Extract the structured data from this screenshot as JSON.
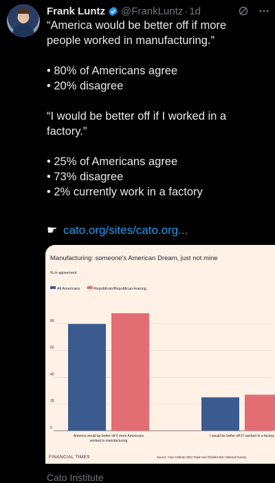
{
  "tweet": {
    "author_name": "Frank Luntz",
    "handle": "@FrankLuntz",
    "separator": "·",
    "time": "1d",
    "lines": [
      "“America would be better off if more",
      "people worked in manufacturing.”",
      "",
      "• 80% of Americans agree",
      "• 20% disagree",
      "",
      "“I would be better off if I worked in a",
      "factory.”",
      "",
      "• 25% of Americans agree",
      "• 73% disagree",
      "•   2% currently work in a factory"
    ],
    "link_text": "cato.org/sites/cato.org...",
    "source_label": "Cato Institute"
  },
  "colors": {
    "accent_link": "#1d9bf0",
    "verified": "#1d9bf0",
    "blue_series": "#3b5b8f",
    "red_series": "#e26d73",
    "card_bg": "#fff1e5"
  },
  "icons": {
    "verified": "verified-badge-icon",
    "grok": "grok-icon",
    "more": "more-icon",
    "link_pointer": "pointing-hand-icon"
  },
  "chart_data": {
    "type": "bar",
    "title": "Manufacturing: someone's American Dream, just not mine",
    "subtitle": "% in agreement",
    "categories": [
      [
        "America would be better off if more Americans",
        "worked in manufacturing"
      ],
      [
        "I would be better off if I worked in a factory"
      ]
    ],
    "series": [
      {
        "name": "All Americans",
        "color": "#3b5b8f",
        "values": [
          80,
          25
        ]
      },
      {
        "name": "Republican/Republican-leaning",
        "color": "#e26d73",
        "values": [
          88,
          27
        ]
      }
    ],
    "yticks": [
      0,
      20,
      40,
      60,
      80
    ],
    "ylim": [
      0,
      100
    ],
    "grid": true,
    "legend_position": "top-left",
    "publisher": "FINANCIAL TIMES",
    "source": "Source: Cato Institute 2024 Trade and Globalization National Survey"
  }
}
